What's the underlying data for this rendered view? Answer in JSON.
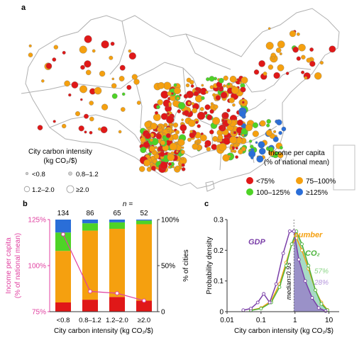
{
  "panel_labels": {
    "a": "a",
    "b": "b",
    "c": "c"
  },
  "map": {
    "size_legend": {
      "title": "City carbon intensity",
      "unit": "(kg CO₂/$)",
      "items": [
        "<0.8",
        "0.8–1.2",
        "1.2–2.0",
        "≥2.0"
      ]
    },
    "color_legend": {
      "title": "Income per capita",
      "subtitle": "(% of national mean)",
      "items": [
        {
          "label": "<75%",
          "color": "#e01818"
        },
        {
          "label": "75–100%",
          "color": "#f5a00f"
        },
        {
          "label": "100–125%",
          "color": "#4ed326"
        },
        {
          "label": "≥125%",
          "color": "#2a6ed8"
        }
      ]
    }
  },
  "chart_data": [
    {
      "type": "bar",
      "stacked": true,
      "categories": [
        "<0.8",
        "0.8–1.2",
        "1.2–2.0",
        "≥2.0"
      ],
      "n_label": "n =",
      "n_values": [
        134,
        86,
        65,
        52
      ],
      "series": [
        {
          "name": "<75%",
          "color": "#e01818",
          "values": [
            10,
            13,
            16,
            12
          ]
        },
        {
          "name": "75–100%",
          "color": "#f5a00f",
          "values": [
            56,
            75,
            74,
            83
          ]
        },
        {
          "name": "100–125%",
          "color": "#4ed326",
          "values": [
            20,
            8,
            7,
            4
          ]
        },
        {
          "name": "≥125%",
          "color": "#2a6ed8",
          "values": [
            14,
            4,
            3,
            1
          ]
        }
      ],
      "line": {
        "values": [
          117,
          86,
          85,
          81
        ],
        "color": "#e040a0"
      },
      "xlabel": "City carbon intensity (kg CO₂/$)",
      "ylabel_left": "Income per capita",
      "ylabel_left_sub": "(% of national mean)",
      "ylim_left": [
        75,
        125
      ],
      "yticks_left": [
        "75%",
        "100%",
        "125%"
      ],
      "ylabel_right": "% of cities",
      "ylim_right": [
        0,
        100
      ],
      "yticks_right": [
        "0",
        "50%",
        "100%"
      ]
    },
    {
      "type": "line",
      "x_scale": "log",
      "xlim": [
        0.01,
        20
      ],
      "xticks": [
        "0.01",
        "0.1",
        "1",
        "10"
      ],
      "ylim": [
        0,
        0.3
      ],
      "yticks": [
        "0",
        "0.1",
        "0.2",
        "0.3"
      ],
      "xlabel": "City carbon intensity (kg CO₂/$)",
      "ylabel": "Probability density",
      "median": {
        "x": 0.93,
        "label": "median=0.93"
      },
      "series": [
        {
          "name": "GDP",
          "color": "#7a3ea8",
          "x": [
            0.03,
            0.05,
            0.08,
            0.12,
            0.18,
            0.28,
            0.45,
            0.7,
            0.93,
            1.3,
            2.0,
            3.2,
            5.0,
            8.0
          ],
          "y": [
            0.005,
            0.01,
            0.03,
            0.058,
            0.03,
            0.09,
            0.19,
            0.262,
            0.262,
            0.17,
            0.1,
            0.045,
            0.012,
            0.002
          ],
          "shade_label": "28%"
        },
        {
          "name": "CO₂",
          "color": "#4cb43c",
          "x": [
            0.05,
            0.1,
            0.2,
            0.35,
            0.55,
            0.8,
            1.1,
            1.6,
            2.5,
            4.0,
            6.0,
            9.0
          ],
          "y": [
            0.004,
            0.01,
            0.03,
            0.08,
            0.15,
            0.22,
            0.262,
            0.22,
            0.15,
            0.07,
            0.025,
            0.005
          ],
          "shade_label": "57%"
        },
        {
          "name": "number",
          "color": "#f5a00f",
          "x": [
            0.05,
            0.1,
            0.2,
            0.35,
            0.55,
            0.8,
            1.1,
            1.6,
            2.5,
            4.0,
            6.0,
            9.0
          ],
          "y": [
            0.005,
            0.012,
            0.035,
            0.09,
            0.16,
            0.22,
            0.24,
            0.2,
            0.14,
            0.07,
            0.03,
            0.006
          ]
        }
      ]
    }
  ]
}
